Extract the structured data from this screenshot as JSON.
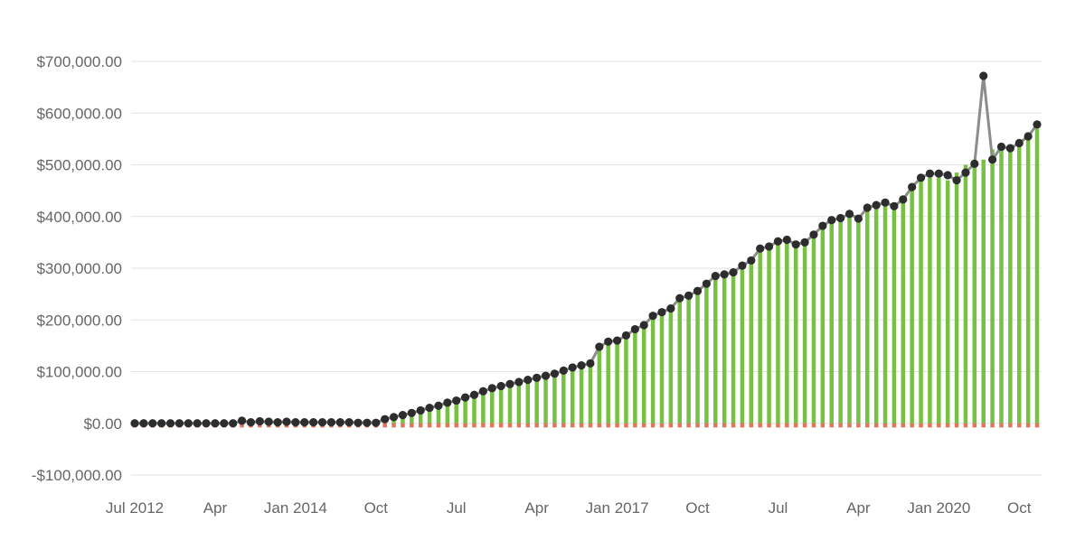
{
  "chart_data": {
    "type": "bar",
    "title": "",
    "xlabel": "",
    "ylabel": "",
    "ylim": [
      -100000,
      700000
    ],
    "grid": true,
    "legend": "none",
    "y_ticks": [
      {
        "value": 700000,
        "label": "$700,000.00"
      },
      {
        "value": 600000,
        "label": "$600,000.00"
      },
      {
        "value": 500000,
        "label": "$500,000.00"
      },
      {
        "value": 400000,
        "label": "$400,000.00"
      },
      {
        "value": 300000,
        "label": "$300,000.00"
      },
      {
        "value": 200000,
        "label": "$200,000.00"
      },
      {
        "value": 100000,
        "label": "$100,000.00"
      },
      {
        "value": 0,
        "label": "$0.00"
      },
      {
        "value": -100000,
        "label": "-$100,000.00"
      }
    ],
    "x_ticks": [
      {
        "x": "2012-07",
        "label": "Jul 2012"
      },
      {
        "x": "2013-04",
        "label": "Apr"
      },
      {
        "x": "2014-01",
        "label": "Jan 2014"
      },
      {
        "x": "2014-10",
        "label": "Oct"
      },
      {
        "x": "2015-07",
        "label": "Jul"
      },
      {
        "x": "2016-04",
        "label": "Apr"
      },
      {
        "x": "2017-01",
        "label": "Jan 2017"
      },
      {
        "x": "2017-10",
        "label": "Oct"
      },
      {
        "x": "2018-07",
        "label": "Jul"
      },
      {
        "x": "2019-04",
        "label": "Apr"
      },
      {
        "x": "2020-01",
        "label": "Jan 2020"
      },
      {
        "x": "2020-10",
        "label": "Oct"
      }
    ],
    "x": [
      "2012-07",
      "2012-08",
      "2012-09",
      "2012-10",
      "2012-11",
      "2012-12",
      "2013-01",
      "2013-02",
      "2013-03",
      "2013-04",
      "2013-05",
      "2013-06",
      "2013-07",
      "2013-08",
      "2013-09",
      "2013-10",
      "2013-11",
      "2013-12",
      "2014-01",
      "2014-02",
      "2014-03",
      "2014-04",
      "2014-05",
      "2014-06",
      "2014-07",
      "2014-08",
      "2014-09",
      "2014-10",
      "2014-11",
      "2014-12",
      "2015-01",
      "2015-02",
      "2015-03",
      "2015-04",
      "2015-05",
      "2015-06",
      "2015-07",
      "2015-08",
      "2015-09",
      "2015-10",
      "2015-11",
      "2015-12",
      "2016-01",
      "2016-02",
      "2016-03",
      "2016-04",
      "2016-05",
      "2016-06",
      "2016-07",
      "2016-08",
      "2016-09",
      "2016-10",
      "2016-11",
      "2016-12",
      "2017-01",
      "2017-02",
      "2017-03",
      "2017-04",
      "2017-05",
      "2017-06",
      "2017-07",
      "2017-08",
      "2017-09",
      "2017-10",
      "2017-11",
      "2017-12",
      "2018-01",
      "2018-02",
      "2018-03",
      "2018-04",
      "2018-05",
      "2018-06",
      "2018-07",
      "2018-08",
      "2018-09",
      "2018-10",
      "2018-11",
      "2018-12",
      "2019-01",
      "2019-02",
      "2019-03",
      "2019-04",
      "2019-05",
      "2019-06",
      "2019-07",
      "2019-08",
      "2019-09",
      "2019-10",
      "2019-11",
      "2019-12",
      "2020-01",
      "2020-02",
      "2020-03",
      "2020-04",
      "2020-05",
      "2020-06",
      "2020-07",
      "2020-08",
      "2020-09",
      "2020-10",
      "2020-11",
      "2020-12"
    ],
    "series": [
      {
        "type": "bar",
        "color": "#77c043",
        "values": [
          0,
          0,
          0,
          0,
          0,
          0,
          0,
          0,
          0,
          0,
          0,
          0,
          0,
          0,
          0,
          0,
          0,
          0,
          0,
          0,
          0,
          0,
          0,
          0,
          0,
          0,
          0,
          0,
          8000,
          12000,
          16000,
          20000,
          25000,
          30000,
          34000,
          40000,
          44000,
          50000,
          55000,
          62000,
          68000,
          72000,
          76000,
          80000,
          84000,
          88000,
          92000,
          96000,
          102000,
          108000,
          112000,
          116000,
          148000,
          158000,
          160000,
          170000,
          182000,
          190000,
          208000,
          215000,
          222000,
          242000,
          247000,
          256000,
          270000,
          285000,
          288000,
          292000,
          305000,
          315000,
          338000,
          342000,
          352000,
          355000,
          346000,
          350000,
          365000,
          382000,
          393000,
          397000,
          405000,
          396000,
          417000,
          422000,
          427000,
          420000,
          433000,
          457000,
          470000,
          475000,
          475000,
          470000,
          485000,
          500000,
          510000,
          510000,
          530000,
          530000,
          540000,
          550000,
          563000,
          570000
        ]
      },
      {
        "type": "bar",
        "color": "#e05a3c",
        "values": [
          -8000,
          -8000,
          -8000,
          -8000,
          -8000,
          -8000,
          -8000,
          -8000,
          -8000,
          -8000,
          -8000,
          -8000,
          -8000,
          -8000,
          -8000,
          -8000,
          -8000,
          -8000,
          -8000,
          -8000,
          -8000,
          -8000,
          -8000,
          -8000,
          -8000,
          -8000,
          -8000,
          -8000,
          -8000,
          -8000,
          -8000,
          -8000,
          -8000,
          -8000,
          -8000,
          -8000,
          -8000,
          -8000,
          -8000,
          -8000,
          -8000,
          -8000,
          -8000,
          -8000,
          -8000,
          -8000,
          -8000,
          -8000,
          -8000,
          -8000,
          -8000,
          -8000,
          -8000,
          -8000,
          -8000,
          -8000,
          -8000,
          -8000,
          -8000,
          -8000,
          -8000,
          -8000,
          -8000,
          -8000,
          -8000,
          -8000,
          -8000,
          -8000,
          -8000,
          -8000,
          -8000,
          -8000,
          -8000,
          -8000,
          -8000,
          -8000,
          -8000,
          -8000,
          -8000,
          -8000,
          -8000,
          -8000,
          -8000,
          -8000,
          -8000,
          -8000,
          -8000,
          -8000,
          -8000,
          -8000,
          -8000,
          -8000,
          -8000,
          -8000,
          -8000,
          -8000,
          -8000,
          -8000,
          -8000,
          -8000,
          -8000,
          -8000
        ]
      },
      {
        "type": "line",
        "color": "#8c8c8c",
        "marker_color": "#2d2d2d",
        "values": [
          0,
          0,
          0,
          0,
          0,
          0,
          0,
          0,
          0,
          0,
          0,
          0,
          5000,
          2000,
          4000,
          3000,
          2000,
          3000,
          2000,
          2000,
          2000,
          2000,
          2000,
          2000,
          2000,
          1000,
          1000,
          1000,
          8000,
          12000,
          16000,
          20000,
          25000,
          30000,
          34000,
          40000,
          44000,
          50000,
          55000,
          62000,
          68000,
          72000,
          76000,
          80000,
          84000,
          88000,
          92000,
          96000,
          102000,
          108000,
          112000,
          116000,
          148000,
          158000,
          160000,
          170000,
          182000,
          190000,
          208000,
          215000,
          222000,
          242000,
          247000,
          256000,
          270000,
          285000,
          288000,
          292000,
          305000,
          315000,
          338000,
          342000,
          352000,
          355000,
          346000,
          350000,
          365000,
          382000,
          393000,
          397000,
          405000,
          396000,
          417000,
          422000,
          427000,
          420000,
          433000,
          457000,
          475000,
          483000,
          483000,
          480000,
          470000,
          485000,
          502000,
          672000,
          510000,
          535000,
          532000,
          542000,
          555000,
          578000
        ]
      }
    ]
  }
}
